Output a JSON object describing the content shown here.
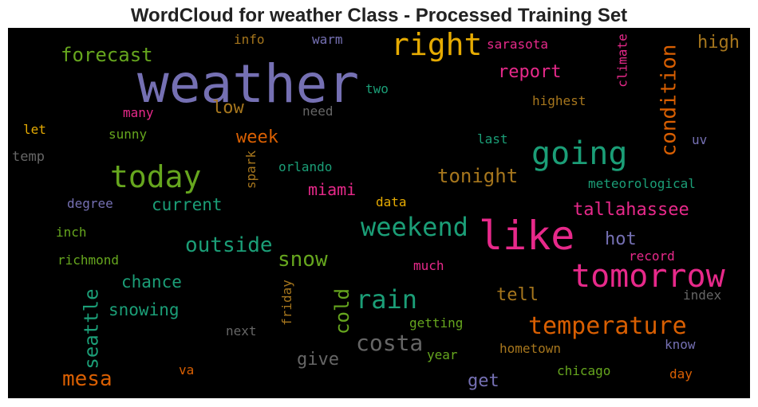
{
  "title": "WordCloud for weather Class - Processed Training Set",
  "colors": {
    "purple": "#7570b3",
    "green": "#1b9e77",
    "orange": "#d95f02",
    "pink": "#e7298a",
    "lime": "#66a61e",
    "yellow": "#e6ab02",
    "brown": "#a6761d",
    "gray": "#666666"
  },
  "words": [
    {
      "text": "weather"
    },
    {
      "text": "right"
    },
    {
      "text": "like"
    },
    {
      "text": "tomorrow"
    },
    {
      "text": "going"
    },
    {
      "text": "today"
    },
    {
      "text": "weekend"
    },
    {
      "text": "condition"
    },
    {
      "text": "temperature"
    },
    {
      "text": "rain"
    },
    {
      "text": "forecast"
    },
    {
      "text": "tonight"
    },
    {
      "text": "seattle"
    },
    {
      "text": "costa"
    },
    {
      "text": "snow"
    },
    {
      "text": "outside"
    },
    {
      "text": "mesa"
    },
    {
      "text": "cold"
    },
    {
      "text": "report"
    },
    {
      "text": "tallahassee"
    },
    {
      "text": "high"
    },
    {
      "text": "week"
    },
    {
      "text": "low"
    },
    {
      "text": "miami"
    },
    {
      "text": "current"
    },
    {
      "text": "chance"
    },
    {
      "text": "snowing"
    },
    {
      "text": "hot"
    },
    {
      "text": "give"
    },
    {
      "text": "tell"
    },
    {
      "text": "get"
    },
    {
      "text": "info"
    },
    {
      "text": "warm"
    },
    {
      "text": "sarasota"
    },
    {
      "text": "climate"
    },
    {
      "text": "two"
    },
    {
      "text": "highest"
    },
    {
      "text": "many"
    },
    {
      "text": "need"
    },
    {
      "text": "let"
    },
    {
      "text": "sunny"
    },
    {
      "text": "last"
    },
    {
      "text": "uv"
    },
    {
      "text": "temp"
    },
    {
      "text": "orlando"
    },
    {
      "text": "spark"
    },
    {
      "text": "meteorological"
    },
    {
      "text": "degree"
    },
    {
      "text": "data"
    },
    {
      "text": "inch"
    },
    {
      "text": "record"
    },
    {
      "text": "richmond"
    },
    {
      "text": "much"
    },
    {
      "text": "friday"
    },
    {
      "text": "index"
    },
    {
      "text": "next"
    },
    {
      "text": "getting"
    },
    {
      "text": "know"
    },
    {
      "text": "hometown"
    },
    {
      "text": "year"
    },
    {
      "text": "chicago"
    },
    {
      "text": "va"
    },
    {
      "text": "day"
    }
  ]
}
